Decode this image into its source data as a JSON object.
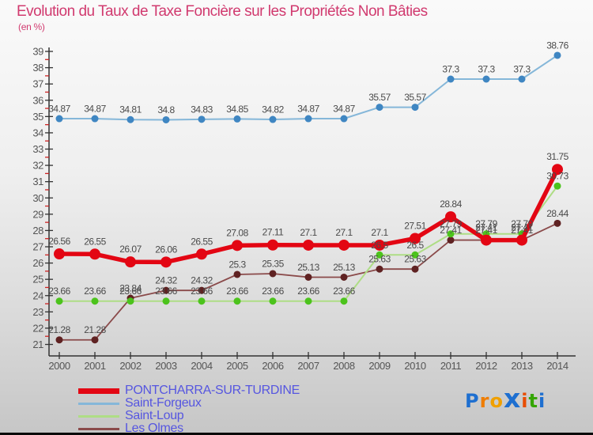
{
  "title": "Evolution du Taux de Taxe Foncière sur les Propriétés Non Bâties",
  "subtitle": "(en %)",
  "chart_data": {
    "type": "line",
    "x": [
      2000,
      2001,
      2002,
      2003,
      2004,
      2005,
      2006,
      2007,
      2008,
      2009,
      2010,
      2011,
      2012,
      2013,
      2014
    ],
    "series": [
      {
        "name": "PONTCHARRA-SUR-TURDINE",
        "color": "#e30613",
        "dot_color": "#e30613",
        "line_width": 5.5,
        "dot_radius": 7,
        "values": [
          26.56,
          26.55,
          26.07,
          26.06,
          26.55,
          27.08,
          27.11,
          27.1,
          27.1,
          27.1,
          27.51,
          28.84,
          27.41,
          27.41,
          31.75
        ]
      },
      {
        "name": "Saint-Forgeux",
        "color": "#85b7d9",
        "dot_color": "#3f86c2",
        "line_width": 2,
        "dot_radius": 4.5,
        "values": [
          34.87,
          34.87,
          34.81,
          34.8,
          34.83,
          34.85,
          34.82,
          34.87,
          34.87,
          35.57,
          35.57,
          37.3,
          37.3,
          37.3,
          38.76
        ]
      },
      {
        "name": "Saint-Loup",
        "color": "#aedd85",
        "dot_color": "#4cc31c",
        "line_width": 2,
        "dot_radius": 4.5,
        "values": [
          23.66,
          23.66,
          23.66,
          23.66,
          23.66,
          23.66,
          23.66,
          23.66,
          23.66,
          26.5,
          26.5,
          27.79,
          27.79,
          27.79,
          30.73
        ]
      },
      {
        "name": "Les Olmes",
        "color": "#8a4a4a",
        "dot_color": "#5f2222",
        "line_width": 1.8,
        "dot_radius": 4.5,
        "values": [
          21.28,
          21.28,
          23.84,
          24.32,
          24.32,
          25.3,
          25.35,
          25.13,
          25.13,
          25.63,
          25.63,
          27.41,
          27.41,
          27.41,
          28.44
        ]
      }
    ],
    "ylim": [
      21,
      39
    ],
    "y_tick_step": 1,
    "y_minor_tick_step": 0.5,
    "grid": false,
    "value_labels": true,
    "legend_position": "bottom-left",
    "colors": {
      "axis": "#333333",
      "tick_labels": "#555555",
      "minor_ticks": "#cc2222",
      "title": "#d13a6f",
      "legend_text": "#5656e0"
    }
  },
  "logo": {
    "name": "Proxiti",
    "letters": [
      {
        "ch": "P",
        "color": "#1e6fd0",
        "big": false
      },
      {
        "ch": "r",
        "color": "#ef7d00",
        "big": false
      },
      {
        "ch": "o",
        "color": "#f0a000",
        "big": false
      },
      {
        "ch": "x",
        "color": "#1e6fd0",
        "big": true
      },
      {
        "ch": "i",
        "color": "#e84c00",
        "big": false
      },
      {
        "ch": "t",
        "color": "#35a502",
        "big": false
      },
      {
        "ch": "i",
        "color": "#1e6fd0",
        "big": false
      }
    ]
  }
}
